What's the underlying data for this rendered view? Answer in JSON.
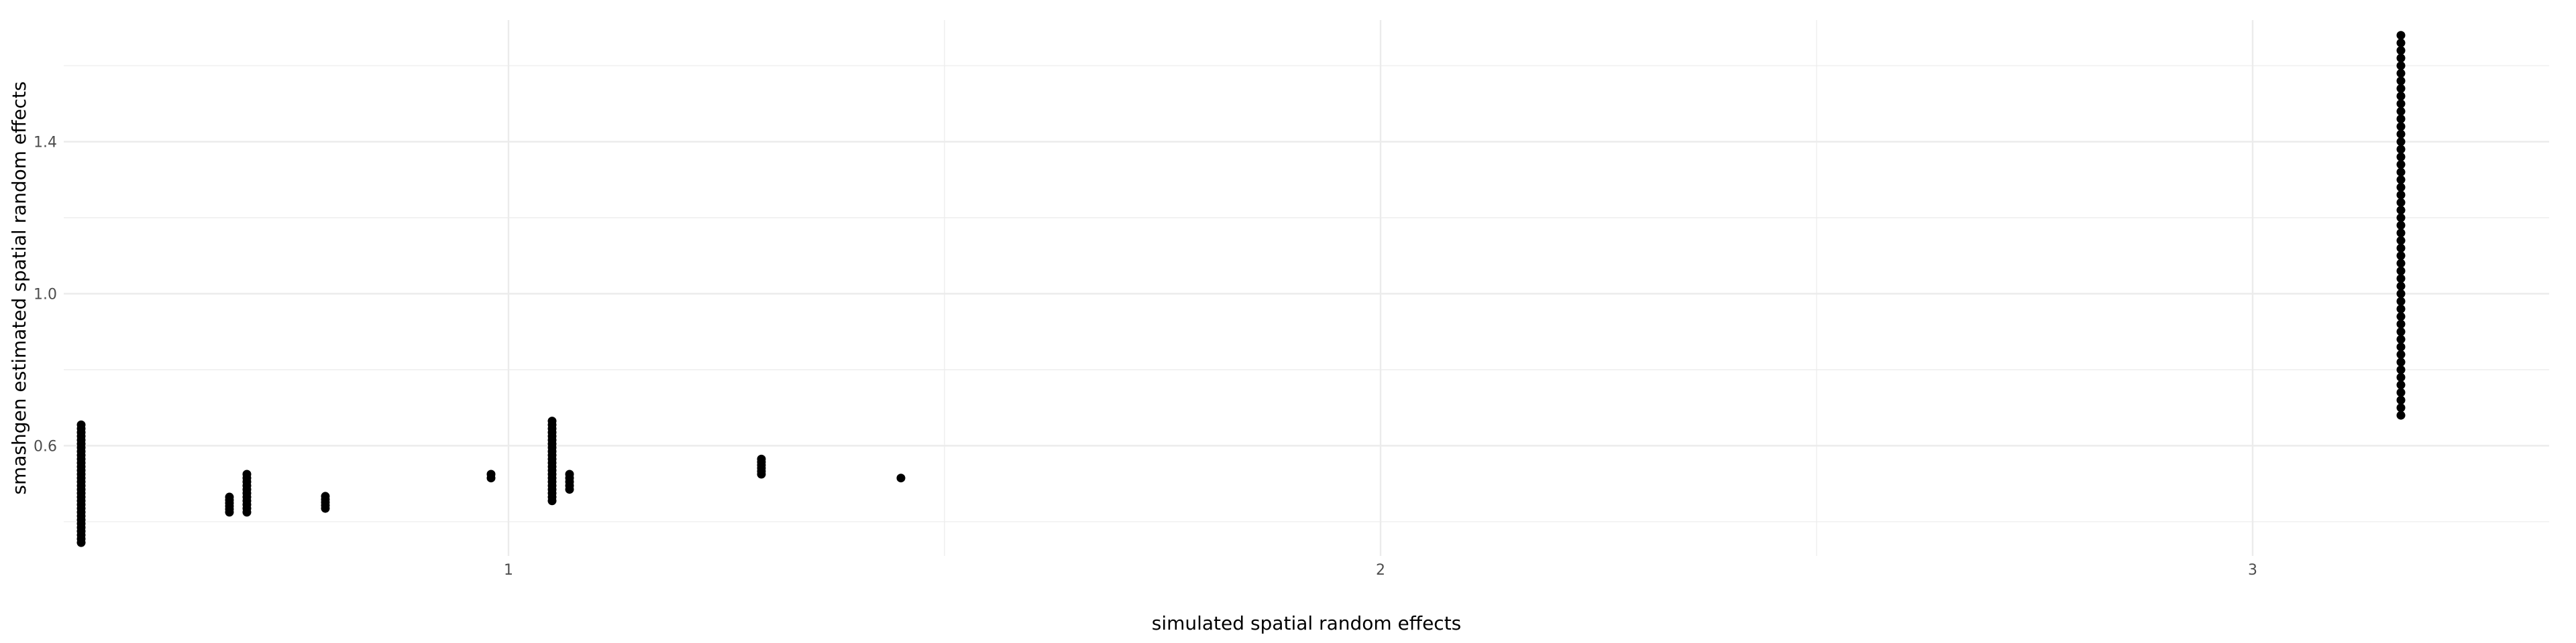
{
  "chart_data": {
    "type": "scatter",
    "title": "",
    "xlabel": "simulated spatial random effects",
    "ylabel": "smashgen estimated spatial random effects",
    "xlim": [
      0.49,
      3.34
    ],
    "ylim": [
      0.31,
      1.72
    ],
    "x_major_ticks": [
      1,
      2,
      3
    ],
    "x_minor_ticks": [
      1.5,
      2.5
    ],
    "y_major_ticks": [
      0.6,
      1.0,
      1.4
    ],
    "y_minor_ticks": [
      0.4,
      0.8,
      1.2,
      1.6
    ],
    "x_tick_labels": [
      "1",
      "2",
      "3"
    ],
    "y_tick_labels": [
      "0.6",
      "1.0",
      "1.4"
    ],
    "grid": true,
    "point_color": "#000000",
    "gridline_color": "#ebebeb",
    "series": [
      {
        "name": "points",
        "groups": [
          {
            "x": 0.51,
            "y_min": 0.345,
            "y_max": 0.655,
            "step": 0.01
          },
          {
            "x": 0.68,
            "y_min": 0.425,
            "y_max": 0.465,
            "step": 0.008
          },
          {
            "x": 0.7,
            "y_min": 0.425,
            "y_max": 0.525,
            "step": 0.01
          },
          {
            "x": 0.79,
            "y_min": 0.435,
            "y_max": 0.465,
            "step": 0.008
          },
          {
            "x": 0.98,
            "y_min": 0.515,
            "y_max": 0.525,
            "step": 0.01
          },
          {
            "x": 1.05,
            "y_min": 0.455,
            "y_max": 0.665,
            "step": 0.01
          },
          {
            "x": 1.07,
            "y_min": 0.485,
            "y_max": 0.525,
            "step": 0.01
          },
          {
            "x": 1.29,
            "y_min": 0.525,
            "y_max": 0.565,
            "step": 0.008
          },
          {
            "x": 1.45,
            "y_min": 0.515,
            "y_max": 0.515,
            "step": 0.01
          },
          {
            "x": 3.17,
            "y_min": 0.68,
            "y_max": 1.68,
            "step": 0.02
          }
        ]
      }
    ]
  }
}
